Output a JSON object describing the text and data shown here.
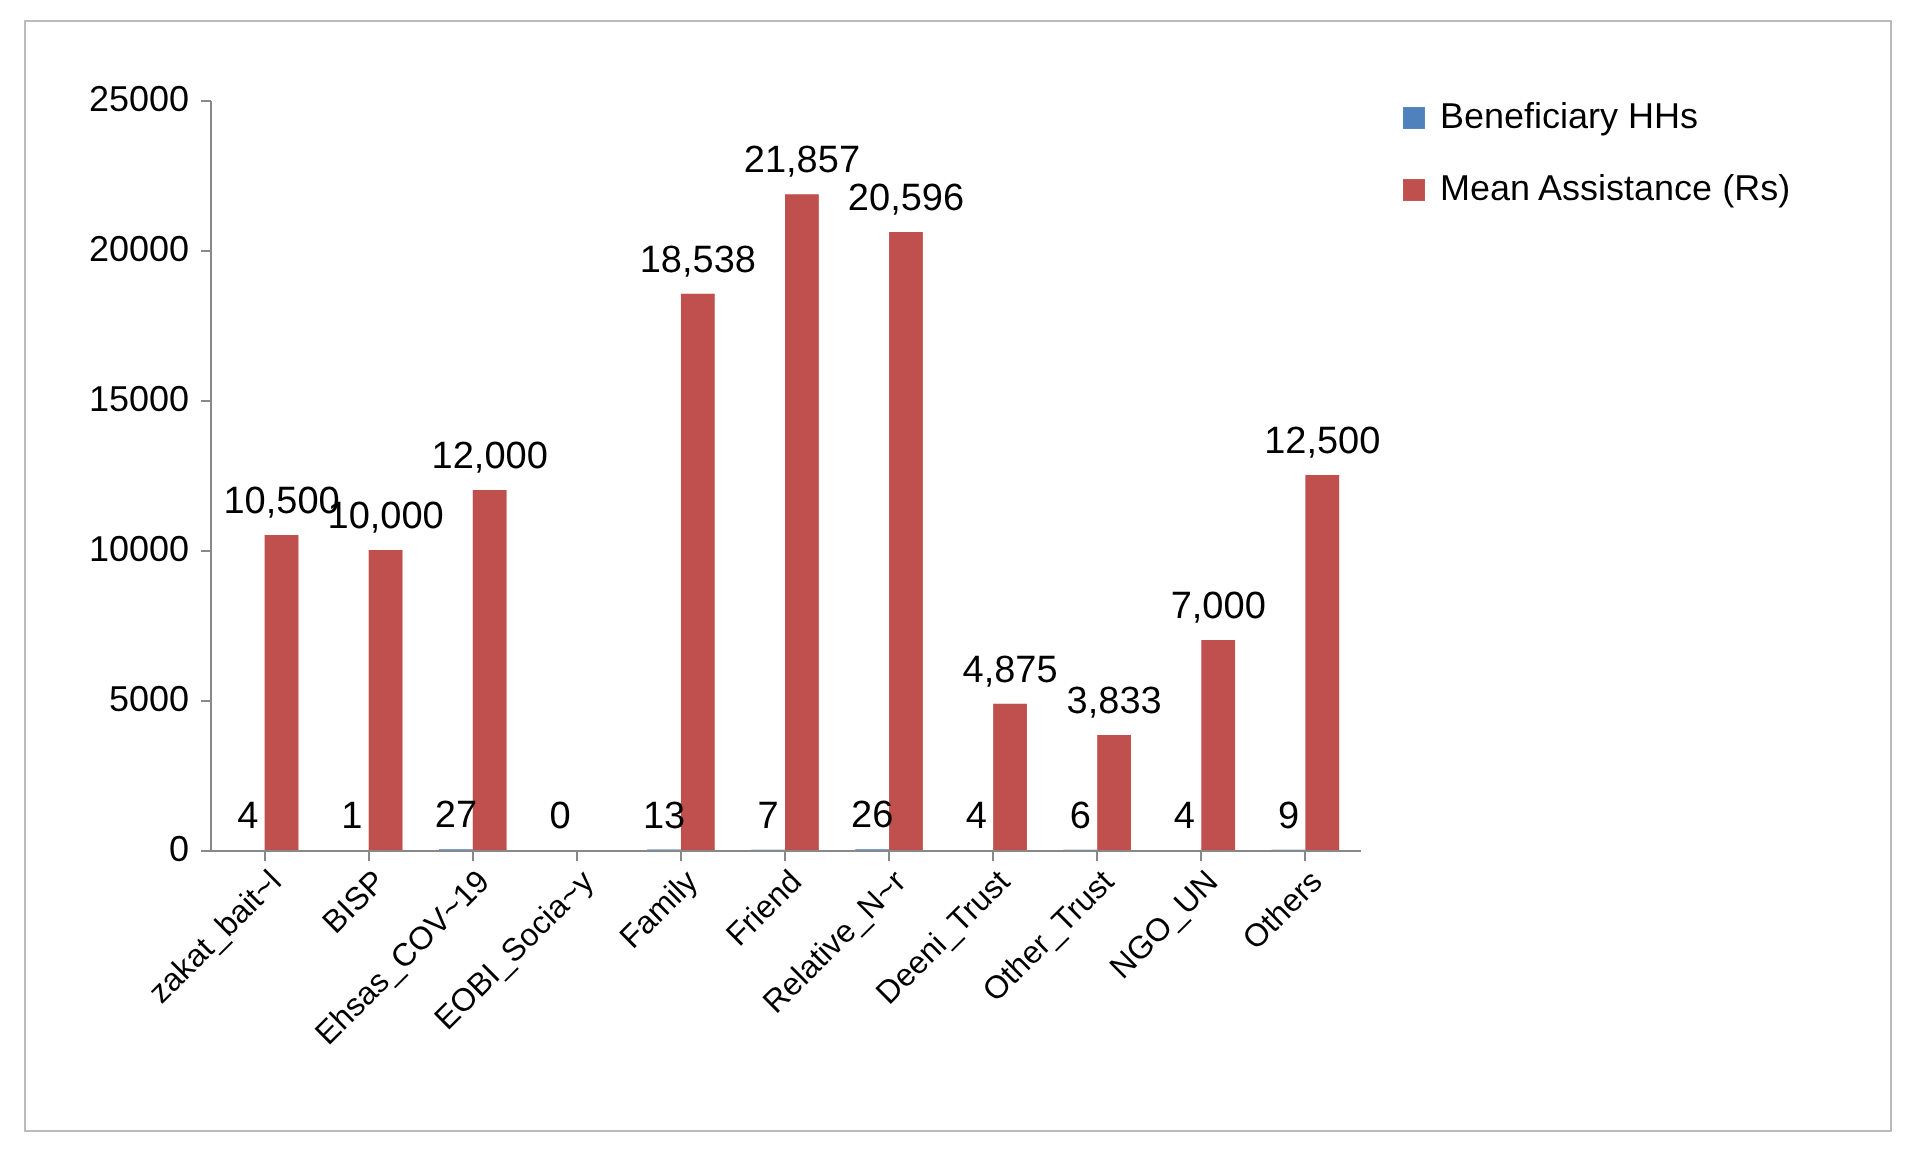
{
  "chart_data": {
    "type": "bar",
    "categories": [
      "zakat_bait~l",
      "BISP",
      "Ehsas_COV~19",
      "EOBI_Socia~y",
      "Family",
      "Friend",
      "Relative_N~r",
      "Deeni_Trust",
      "Other_Trust",
      "NGO_UN",
      "Others"
    ],
    "series": [
      {
        "name": "Beneficiary HHs",
        "color": "#4f81bd",
        "values": [
          4,
          1,
          27,
          0,
          13,
          7,
          26,
          4,
          6,
          4,
          9
        ],
        "value_labels": [
          "4",
          "1",
          "27",
          "0",
          "13",
          "7",
          "26",
          "4",
          "6",
          "4",
          "9"
        ]
      },
      {
        "name": "Mean Assistance (Rs)",
        "color": "#c0504d",
        "values": [
          10500,
          10000,
          12000,
          null,
          18538,
          21857,
          20596,
          4875,
          3833,
          7000,
          12500
        ],
        "value_labels": [
          "10,500",
          "10,000",
          "12,000",
          null,
          "18,538",
          "21,857",
          "20,596",
          "4,875",
          "3,833",
          "7,000",
          "12,500"
        ]
      }
    ],
    "ylim": [
      0,
      25000
    ],
    "yticks": [
      0,
      5000,
      10000,
      15000,
      20000,
      25000
    ],
    "grid": false,
    "legend": "right"
  }
}
